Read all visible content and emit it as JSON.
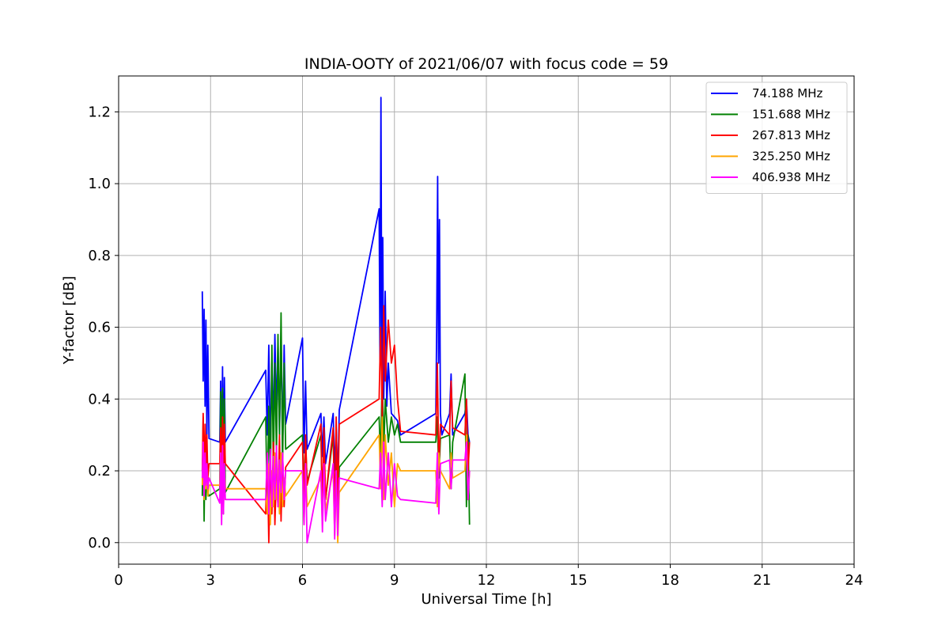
{
  "chart_data": {
    "type": "line",
    "title": "INDIA-OOTY of 2021/06/07 with focus code = 59",
    "xlabel": "Universal Time [h]",
    "ylabel": "Y-factor [dB]",
    "xlim": [
      0,
      24
    ],
    "ylim": [
      -0.06,
      1.3
    ],
    "xticks": [
      0,
      3,
      6,
      9,
      12,
      15,
      18,
      21,
      24
    ],
    "yticks": [
      0.0,
      0.2,
      0.4,
      0.6,
      0.8,
      1.0,
      1.2
    ],
    "xtick_labels": [
      "0",
      "3",
      "6",
      "9",
      "12",
      "15",
      "18",
      "21",
      "24"
    ],
    "ytick_labels": [
      "0.0",
      "0.2",
      "0.4",
      "0.6",
      "0.8",
      "1.0",
      "1.2"
    ],
    "grid": true,
    "legend_position": "top-right",
    "series": [
      {
        "name": "74.188 MHz",
        "legend_label": "  74.188 MHz",
        "color": "#0000ff",
        "x": [
          2.73,
          2.76,
          2.79,
          2.82,
          2.85,
          2.88,
          2.91,
          2.95,
          3.3,
          3.33,
          3.36,
          3.39,
          3.42,
          3.45,
          3.48,
          4.8,
          4.85,
          4.9,
          4.95,
          5.0,
          5.05,
          5.1,
          5.15,
          5.2,
          5.25,
          5.3,
          5.35,
          5.4,
          5.45,
          6.0,
          6.05,
          6.1,
          6.15,
          6.6,
          6.65,
          6.7,
          6.75,
          7.0,
          7.05,
          7.1,
          7.15,
          7.2,
          8.5,
          8.53,
          8.56,
          8.59,
          8.62,
          8.65,
          8.7,
          8.75,
          8.8,
          8.9,
          9.0,
          9.1,
          9.2,
          10.35,
          10.38,
          10.41,
          10.44,
          10.47,
          10.5,
          10.55,
          10.8,
          10.85,
          10.9,
          11.3,
          11.35,
          11.4,
          11.45
        ],
        "y": [
          0.7,
          0.45,
          0.65,
          0.38,
          0.62,
          0.3,
          0.55,
          0.29,
          0.28,
          0.45,
          0.22,
          0.49,
          0.2,
          0.46,
          0.28,
          0.48,
          0.3,
          0.55,
          0.25,
          0.5,
          0.32,
          0.58,
          0.35,
          0.56,
          0.3,
          0.59,
          0.25,
          0.55,
          0.33,
          0.57,
          0.25,
          0.45,
          0.26,
          0.36,
          0.24,
          0.35,
          0.22,
          0.36,
          0.2,
          0.32,
          0.17,
          0.37,
          0.93,
          0.5,
          1.24,
          0.45,
          0.85,
          0.4,
          0.7,
          0.38,
          0.5,
          0.36,
          0.35,
          0.34,
          0.3,
          0.36,
          0.6,
          1.02,
          0.5,
          0.9,
          0.36,
          0.3,
          0.36,
          0.47,
          0.3,
          0.36,
          0.4,
          0.3,
          0.28
        ]
      },
      {
        "name": "151.688 MHz",
        "legend_label": "151.688 MHz",
        "color": "#008000",
        "x": [
          2.73,
          2.76,
          2.79,
          2.82,
          2.85,
          2.88,
          2.91,
          2.95,
          3.3,
          3.33,
          3.36,
          3.39,
          3.42,
          3.45,
          3.48,
          4.8,
          4.85,
          4.9,
          4.95,
          5.0,
          5.05,
          5.1,
          5.15,
          5.2,
          5.25,
          5.3,
          5.35,
          5.4,
          5.45,
          6.0,
          6.05,
          6.1,
          6.15,
          6.6,
          6.65,
          6.7,
          6.75,
          7.0,
          7.05,
          7.1,
          7.15,
          7.2,
          8.5,
          8.55,
          8.6,
          8.65,
          8.7,
          8.8,
          8.9,
          9.0,
          9.1,
          9.2,
          10.35,
          10.4,
          10.45,
          10.5,
          10.8,
          10.85,
          10.9,
          11.3,
          11.35,
          11.4,
          11.45
        ],
        "y": [
          0.13,
          0.35,
          0.06,
          0.3,
          0.12,
          0.25,
          0.14,
          0.13,
          0.15,
          0.42,
          0.1,
          0.43,
          0.08,
          0.4,
          0.14,
          0.35,
          0.1,
          0.38,
          0.15,
          0.55,
          0.2,
          0.5,
          0.25,
          0.58,
          0.3,
          0.64,
          0.22,
          0.5,
          0.26,
          0.3,
          0.15,
          0.28,
          0.17,
          0.3,
          0.1,
          0.28,
          0.12,
          0.3,
          0.1,
          0.25,
          0.08,
          0.21,
          0.35,
          0.22,
          0.48,
          0.25,
          0.4,
          0.28,
          0.35,
          0.3,
          0.33,
          0.28,
          0.28,
          0.35,
          0.18,
          0.29,
          0.3,
          0.15,
          0.28,
          0.47,
          0.1,
          0.3,
          0.05
        ]
      },
      {
        "name": "267.813 MHz",
        "legend_label": "267.813 MHz",
        "color": "#ff0000",
        "x": [
          2.73,
          2.76,
          2.79,
          2.82,
          2.85,
          2.88,
          2.91,
          2.95,
          3.3,
          3.33,
          3.36,
          3.39,
          3.42,
          3.45,
          3.48,
          4.8,
          4.85,
          4.9,
          4.95,
          5.0,
          5.05,
          5.1,
          5.15,
          5.2,
          5.25,
          5.3,
          5.35,
          5.4,
          5.45,
          6.0,
          6.05,
          6.1,
          6.15,
          6.6,
          6.65,
          6.7,
          6.75,
          7.0,
          7.05,
          7.1,
          7.15,
          7.2,
          8.5,
          8.55,
          8.6,
          8.65,
          8.7,
          8.8,
          8.9,
          9.0,
          9.1,
          9.2,
          10.35,
          10.4,
          10.45,
          10.5,
          10.8,
          10.85,
          10.9,
          11.3,
          11.35,
          11.4,
          11.45
        ],
        "y": [
          0.2,
          0.36,
          0.15,
          0.33,
          0.22,
          0.3,
          0.18,
          0.22,
          0.22,
          0.32,
          0.14,
          0.35,
          0.16,
          0.33,
          0.22,
          0.08,
          0.25,
          0.0,
          0.22,
          0.08,
          0.28,
          0.05,
          0.2,
          0.1,
          0.3,
          0.06,
          0.25,
          0.1,
          0.21,
          0.28,
          0.12,
          0.3,
          0.16,
          0.33,
          0.08,
          0.32,
          0.12,
          0.32,
          0.04,
          0.35,
          0.1,
          0.33,
          0.4,
          0.6,
          0.35,
          0.66,
          0.45,
          0.62,
          0.5,
          0.55,
          0.4,
          0.31,
          0.3,
          0.5,
          0.2,
          0.33,
          0.3,
          0.45,
          0.32,
          0.3,
          0.4,
          0.2,
          0.28
        ]
      },
      {
        "name": "325.250 MHz",
        "legend_label": "325.250 MHz",
        "color": "#ffa500",
        "x": [
          2.73,
          2.76,
          2.79,
          2.82,
          2.85,
          2.88,
          2.91,
          2.95,
          3.3,
          3.33,
          3.36,
          3.39,
          3.42,
          3.45,
          3.48,
          4.8,
          4.85,
          4.9,
          4.95,
          5.0,
          5.05,
          5.1,
          5.15,
          5.2,
          5.25,
          5.3,
          5.35,
          5.4,
          5.45,
          6.0,
          6.05,
          6.1,
          6.15,
          6.6,
          6.65,
          6.7,
          6.75,
          7.0,
          7.05,
          7.1,
          7.15,
          7.2,
          8.5,
          8.55,
          8.6,
          8.65,
          8.7,
          8.8,
          8.9,
          9.0,
          9.1,
          9.2,
          10.35,
          10.4,
          10.45,
          10.5,
          10.8,
          10.85,
          10.9,
          11.3,
          11.35,
          11.4,
          11.45
        ],
        "y": [
          0.16,
          0.25,
          0.12,
          0.22,
          0.15,
          0.2,
          0.13,
          0.16,
          0.16,
          0.25,
          0.08,
          0.24,
          0.1,
          0.2,
          0.15,
          0.15,
          0.08,
          0.22,
          0.05,
          0.2,
          0.1,
          0.25,
          0.12,
          0.2,
          0.08,
          0.25,
          0.1,
          0.18,
          0.13,
          0.2,
          0.05,
          0.22,
          0.1,
          0.18,
          0.05,
          0.2,
          0.09,
          0.2,
          0.02,
          0.18,
          0.0,
          0.14,
          0.3,
          0.15,
          0.35,
          0.12,
          0.3,
          0.16,
          0.25,
          0.1,
          0.22,
          0.2,
          0.2,
          0.1,
          0.25,
          0.2,
          0.15,
          0.25,
          0.18,
          0.2,
          0.3,
          0.12,
          0.2
        ]
      },
      {
        "name": "406.938 MHz",
        "legend_label": "406.938 MHz",
        "color": "#ff00ff",
        "x": [
          2.73,
          2.76,
          2.79,
          2.82,
          2.85,
          2.88,
          2.91,
          2.95,
          3.3,
          3.33,
          3.36,
          3.39,
          3.42,
          3.45,
          3.48,
          4.8,
          4.85,
          4.9,
          4.95,
          5.0,
          5.05,
          5.1,
          5.15,
          5.2,
          5.25,
          5.3,
          5.35,
          5.4,
          5.45,
          6.0,
          6.05,
          6.1,
          6.15,
          6.6,
          6.65,
          6.7,
          6.75,
          7.0,
          7.05,
          7.1,
          7.15,
          7.2,
          8.5,
          8.55,
          8.6,
          8.65,
          8.7,
          8.8,
          8.9,
          9.0,
          9.1,
          9.2,
          10.35,
          10.4,
          10.45,
          10.5,
          10.8,
          10.85,
          10.9,
          11.3,
          11.35,
          11.4,
          11.45
        ],
        "y": [
          0.18,
          0.28,
          0.13,
          0.25,
          0.16,
          0.22,
          0.15,
          0.18,
          0.11,
          0.25,
          0.05,
          0.27,
          0.08,
          0.22,
          0.12,
          0.12,
          0.25,
          0.08,
          0.26,
          0.1,
          0.24,
          0.12,
          0.27,
          0.1,
          0.23,
          0.14,
          0.25,
          0.12,
          0.2,
          0.2,
          0.05,
          0.22,
          0.0,
          0.2,
          0.03,
          0.22,
          0.06,
          0.22,
          0.01,
          0.2,
          0.02,
          0.18,
          0.15,
          0.25,
          0.1,
          0.28,
          0.12,
          0.25,
          0.1,
          0.22,
          0.13,
          0.12,
          0.11,
          0.25,
          0.08,
          0.22,
          0.23,
          0.15,
          0.23,
          0.23,
          0.28,
          0.12,
          0.2
        ]
      }
    ]
  }
}
